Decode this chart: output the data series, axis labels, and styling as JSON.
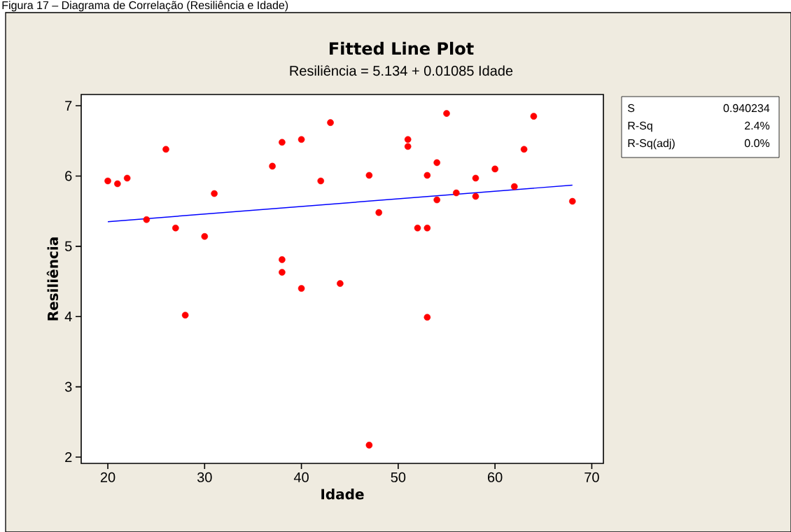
{
  "chart_data": {
    "type": "scatter",
    "title": "Fitted Line Plot",
    "subtitle": "Resiliência =  5.134 + 0.01085 Idade",
    "xlabel": "Idade",
    "ylabel": "Resiliência",
    "annotations": [
      "Figura 17 – Diagrama de Correlação (Resiliência e Idade)",
      "S",
      "0.940234",
      "R-Sq",
      "2.4%",
      "R-Sq(adj)",
      "0.0%"
    ],
    "xlim": [
      17.25,
      71.2
    ],
    "ylim": [
      1.91,
      7.16
    ],
    "xticks": [
      20,
      30,
      40,
      50,
      60,
      70
    ],
    "yticks": [
      2,
      3,
      4,
      5,
      6,
      7
    ],
    "grid": false,
    "series": [
      {
        "type": "scatter",
        "marker": "circle",
        "color": "#ff0000",
        "x": [
          20,
          21,
          22,
          24,
          26,
          27,
          28,
          30,
          31,
          37,
          38,
          38,
          38,
          40,
          40,
          42,
          43,
          44,
          47,
          47,
          48,
          51,
          51,
          52,
          53,
          53,
          53,
          54,
          54,
          55,
          56,
          58,
          58,
          60,
          62,
          63,
          64,
          68
        ],
        "values": [
          5.93,
          5.89,
          5.97,
          5.38,
          6.38,
          5.26,
          4.02,
          5.14,
          5.75,
          6.14,
          6.48,
          4.81,
          4.63,
          6.52,
          4.4,
          5.93,
          6.76,
          4.47,
          6.01,
          2.17,
          5.48,
          6.52,
          6.42,
          5.26,
          5.26,
          6.01,
          3.99,
          6.19,
          5.66,
          6.89,
          5.76,
          5.97,
          5.71,
          6.1,
          5.85,
          6.38,
          6.85,
          5.64
        ]
      },
      {
        "type": "line",
        "color": "#0000ff",
        "marker": "none",
        "line_style": "solid",
        "x": [
          20,
          68
        ],
        "values": [
          5.35,
          5.87
        ]
      }
    ]
  }
}
